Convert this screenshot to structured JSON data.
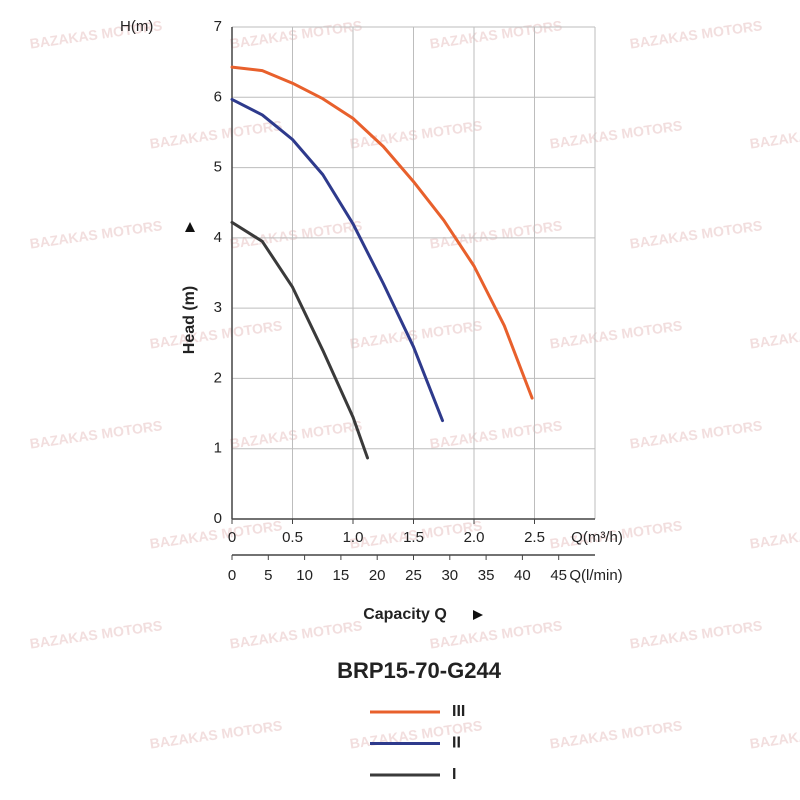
{
  "chart_data": {
    "type": "line",
    "title": "BRP15-70-G244",
    "watermark": "BAZAKAS MOTORS",
    "y_label": "Head (m)",
    "y_unit_label": "H(m)",
    "x_label": "Capacity Q",
    "x_unit_label": "Q(m³/h)",
    "x2_unit_label": "Q(l/min)",
    "xlim": [
      0,
      3
    ],
    "xticks": [
      0,
      0.5,
      {
        "value": 1,
        "label": "1.0"
      },
      1.5,
      {
        "value": 2,
        "label": "2.0"
      },
      2.5
    ],
    "x2lim": [
      0,
      50
    ],
    "x2ticks": [
      0,
      5,
      10,
      15,
      20,
      25,
      30,
      35,
      40,
      45
    ],
    "ylim": [
      0,
      7
    ],
    "yticks": [
      0,
      1,
      2,
      3,
      4,
      5,
      6,
      7
    ],
    "grid": true,
    "series": [
      {
        "name": "III",
        "color": "#e8602c",
        "x": [
          0,
          0.25,
          0.5,
          0.75,
          1,
          1.25,
          1.5,
          1.75,
          2,
          2.25,
          2.48
        ],
        "values": [
          6.43,
          6.38,
          6.2,
          5.98,
          5.7,
          5.3,
          4.8,
          4.25,
          3.6,
          2.75,
          1.72
        ]
      },
      {
        "name": "II",
        "color": "#2e3a8c",
        "x": [
          0,
          0.25,
          0.5,
          0.75,
          1,
          1.25,
          1.5,
          1.74
        ],
        "values": [
          5.97,
          5.75,
          5.4,
          4.9,
          4.2,
          3.35,
          2.45,
          1.4
        ]
      },
      {
        "name": "I",
        "color": "#3a3a3a",
        "x": [
          0,
          0.25,
          0.5,
          0.75,
          1,
          1.12
        ],
        "values": [
          4.22,
          3.95,
          3.3,
          2.4,
          1.45,
          0.87
        ]
      }
    ]
  }
}
